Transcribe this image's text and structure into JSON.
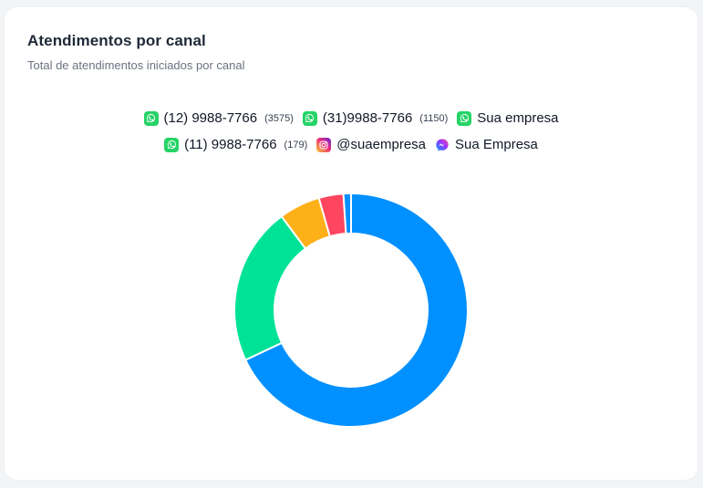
{
  "card": {
    "title": "Atendimentos por canal",
    "subtitle": "Total de atendimentos iniciados por canal"
  },
  "legend": {
    "row1": [
      {
        "label": "(12) 9988-7766",
        "count": "(3575)",
        "icon": "whatsapp-icon"
      },
      {
        "label": "(31)9988-7766",
        "count": "(1150)",
        "icon": "whatsapp-icon"
      },
      {
        "label": "Sua empresa",
        "count": "",
        "icon": "whatsapp-icon"
      }
    ],
    "row2": [
      {
        "label": "(11) 9988-7766",
        "count": "(179)",
        "icon": "whatsapp-icon"
      },
      {
        "label": "@suaempresa",
        "count": "",
        "icon": "instagram-icon"
      },
      {
        "label": "Sua Empresa",
        "count": "",
        "icon": "messenger-icon"
      }
    ]
  },
  "chart_data": {
    "type": "pie",
    "donut": true,
    "labels": [
      "(12) 9988-7766",
      "(31)9988-7766",
      "Sua empresa",
      "(11) 9988-7766",
      "@suaempresa",
      "Sua Empresa"
    ],
    "values": [
      3575,
      1150,
      300,
      179,
      55,
      0
    ],
    "colors": [
      "#0090ff",
      "#00e396",
      "#feb019",
      "#ff4560",
      "#0090ff",
      "#775dd0"
    ],
    "legend_position": "top"
  }
}
